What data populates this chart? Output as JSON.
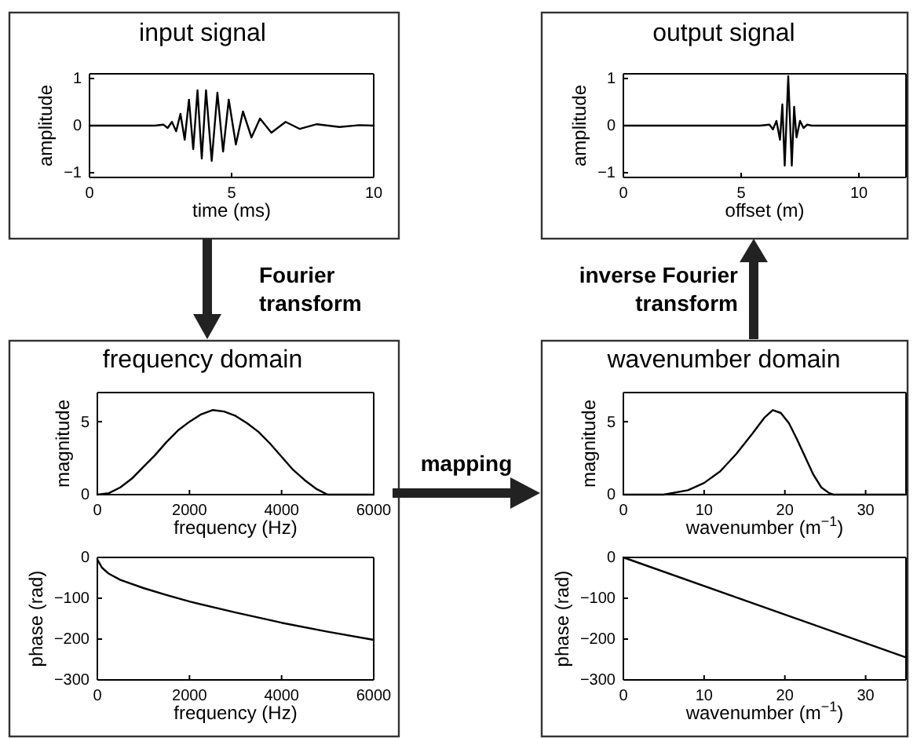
{
  "chart_data": [
    {
      "type": "line",
      "title": "input signal",
      "xlabel": "time (ms)",
      "ylabel": "amplitude",
      "xlim": [
        0,
        10
      ],
      "ylim": [
        -1.1,
        1.1
      ],
      "xticks": [
        0,
        5,
        10
      ],
      "yticks": [
        -1,
        0,
        1
      ],
      "grid": false,
      "marker": "none",
      "line_style": "solid",
      "annotations": [
        "Fourier transform"
      ],
      "series": [
        {
          "color": "#000000",
          "x": [
            0,
            2.3,
            2.6,
            2.75,
            2.9,
            3.05,
            3.2,
            3.35,
            3.5,
            3.65,
            3.8,
            3.95,
            4.1,
            4.3,
            4.5,
            4.7,
            4.9,
            5.15,
            5.4,
            5.7,
            6.0,
            6.4,
            6.9,
            7.4,
            8.0,
            8.8,
            9.5,
            10
          ],
          "values": [
            0,
            0,
            0.02,
            -0.05,
            0.08,
            -0.12,
            0.25,
            -0.3,
            0.55,
            -0.5,
            0.75,
            -0.7,
            0.75,
            -0.75,
            0.7,
            -0.55,
            0.55,
            -0.4,
            0.3,
            -0.25,
            0.15,
            -0.15,
            0.08,
            -0.07,
            0.03,
            -0.03,
            0.01,
            0
          ]
        }
      ]
    },
    {
      "type": "line",
      "title": "output signal",
      "xlabel": "offset (m)",
      "ylabel": "amplitude",
      "xlim": [
        0,
        12
      ],
      "ylim": [
        -1.1,
        1.1
      ],
      "xticks": [
        0,
        5,
        10
      ],
      "yticks": [
        -1,
        0,
        1
      ],
      "grid": false,
      "marker": "none",
      "line_style": "solid",
      "annotations": [
        "inverse Fourier transform"
      ],
      "series": [
        {
          "color": "#000000",
          "x": [
            0,
            5.8,
            6.2,
            6.35,
            6.5,
            6.65,
            6.75,
            6.85,
            7.0,
            7.15,
            7.25,
            7.35,
            7.5,
            7.65,
            7.8,
            8,
            12
          ],
          "values": [
            0,
            0,
            0.02,
            -0.08,
            0.1,
            -0.3,
            0.45,
            -0.85,
            1.05,
            -0.85,
            0.4,
            -0.25,
            0.1,
            -0.05,
            0.02,
            0,
            0
          ]
        }
      ]
    },
    {
      "type": "line",
      "title": "frequency domain",
      "xlabel": "frequency (Hz)",
      "ylabel": "magnitude",
      "xlim": [
        0,
        6000
      ],
      "ylim": [
        0,
        7
      ],
      "xticks": [
        0,
        2000,
        4000,
        6000
      ],
      "yticks": [
        0,
        5
      ],
      "grid": false,
      "marker": "none",
      "line_style": "solid",
      "annotations": [
        "mapping"
      ],
      "series": [
        {
          "color": "#000000",
          "x": [
            0,
            250,
            500,
            750,
            1000,
            1250,
            1500,
            1750,
            2000,
            2250,
            2500,
            2750,
            3000,
            3250,
            3500,
            3750,
            4000,
            4250,
            4500,
            4750,
            5000,
            6000
          ],
          "values": [
            0,
            0.1,
            0.5,
            1.1,
            1.9,
            2.7,
            3.6,
            4.4,
            5,
            5.5,
            5.8,
            5.7,
            5.4,
            4.9,
            4.3,
            3.5,
            2.6,
            1.7,
            1,
            0.4,
            0,
            0
          ]
        }
      ]
    },
    {
      "type": "line",
      "xlabel": "frequency (Hz)",
      "ylabel": "phase (rad)",
      "xlim": [
        0,
        6000
      ],
      "ylim": [
        -300,
        0
      ],
      "xticks": [
        0,
        2000,
        4000,
        6000
      ],
      "yticks": [
        -300,
        -200,
        -100,
        0
      ],
      "grid": false,
      "marker": "none",
      "line_style": "solid",
      "series": [
        {
          "color": "#000000",
          "x": [
            0,
            100,
            250,
            500,
            1000,
            1500,
            2000,
            3000,
            4000,
            5000,
            6000
          ],
          "values": [
            -5,
            -25,
            -40,
            -55,
            -75,
            -92,
            -108,
            -135,
            -160,
            -182,
            -202
          ]
        }
      ]
    },
    {
      "type": "line",
      "title": "wavenumber domain",
      "xlabel": "wavenumber (m$^{−1}$)",
      "ylabel": "magnitude",
      "xlim": [
        0,
        35
      ],
      "ylim": [
        0,
        7
      ],
      "xticks": [
        0,
        10,
        20,
        30
      ],
      "yticks": [
        0,
        5
      ],
      "grid": false,
      "marker": "none",
      "line_style": "solid",
      "series": [
        {
          "color": "#000000",
          "x": [
            0,
            5,
            8,
            10,
            12,
            14,
            16,
            17.5,
            18.5,
            19.5,
            20.5,
            21.5,
            22.5,
            23.5,
            24.5,
            25.5,
            26,
            35
          ],
          "values": [
            0,
            0,
            0.3,
            0.8,
            1.6,
            2.8,
            4.2,
            5.3,
            5.8,
            5.6,
            4.9,
            3.8,
            2.6,
            1.4,
            0.5,
            0.1,
            0,
            0
          ]
        }
      ]
    },
    {
      "type": "line",
      "xlabel": "wavenumber (m$^{−1}$)",
      "ylabel": "phase (rad)",
      "xlim": [
        0,
        35
      ],
      "ylim": [
        -300,
        0
      ],
      "xticks": [
        0,
        10,
        20,
        30
      ],
      "yticks": [
        -300,
        -200,
        -100,
        0
      ],
      "grid": false,
      "marker": "none",
      "line_style": "solid",
      "series": [
        {
          "color": "#000000",
          "x": [
            0,
            35
          ],
          "values": [
            0,
            -245
          ]
        }
      ]
    }
  ]
}
